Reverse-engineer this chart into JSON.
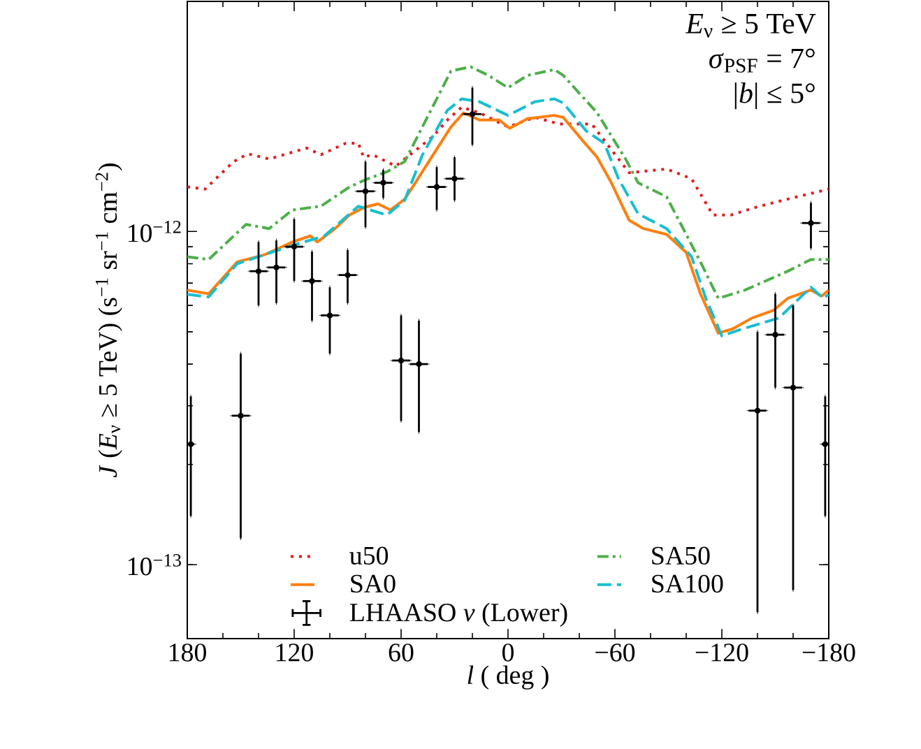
{
  "chart_data": {
    "type": "line",
    "xlabel": "*l* ( deg )",
    "ylabel": "*J* (*E*$_{ν}$ ≥ 5 TeV) (s$^{−1}$ sr$^{−1}$ cm$^{−2}$)",
    "annotations": [
      "*E*$_{ν}$ ≥ 5 TeV",
      "*σ*$_{PSF}$ = 7°",
      "|*b*| ≤ 5°"
    ],
    "log": "y",
    "legend": "bottom",
    "grid": false,
    "xlim": [
      180,
      -180
    ],
    "xticks": [
      180,
      120,
      60,
      0,
      {
        "value": -60,
        "label": "−60"
      },
      {
        "value": -120,
        "label": "−120"
      },
      {
        "value": -180,
        "label": "−180"
      }
    ],
    "ylim": [
      6e-14,
      4.9e-12
    ],
    "yticks": [
      {
        "value": 1e-13,
        "label": "10$^{−13}$"
      },
      {
        "value": 1e-12,
        "label": "10$^{−12}$"
      }
    ],
    "series": [
      {
        "name": "u50",
        "color": "#e41a1c",
        "line_style": "dotted",
        "x": [
          180,
          170,
          154,
          146,
          134,
          113,
          105,
          91,
          84,
          81,
          76,
          63,
          52,
          42,
          34,
          26,
          16,
          0,
          -15,
          -29,
          -47,
          -68,
          -89,
          -103,
          -115,
          -125,
          -141,
          -162,
          -180
        ],
        "values": [
          1.36e-12,
          1.34e-12,
          1.62e-12,
          1.71e-12,
          1.65e-12,
          1.78e-12,
          1.7e-12,
          1.84e-12,
          1.84e-12,
          1.67e-12,
          1.7e-12,
          1.57e-12,
          1.75e-12,
          1.93e-12,
          2.16e-12,
          2.36e-12,
          2.27e-12,
          2.06e-12,
          2.2e-12,
          2.1e-12,
          2.1e-12,
          1.5e-12,
          1.54e-12,
          1.44e-12,
          1.12e-12,
          1.12e-12,
          1.19e-12,
          1.27e-12,
          1.34e-12
        ]
      },
      {
        "name": "SA50",
        "color": "#4daf4a",
        "line_style": "dashdot",
        "x": [
          180,
          168,
          147,
          134,
          121,
          105,
          89,
          80,
          68,
          58,
          44,
          32,
          21,
          11,
          0,
          -11,
          -26,
          -31,
          -50,
          -66,
          -73,
          -89,
          -100,
          -108,
          -118,
          -133,
          -157,
          -170,
          -180
        ],
        "values": [
          8.4e-13,
          8.24e-13,
          1.05e-12,
          1.02e-12,
          1.16e-12,
          1.19e-12,
          1.36e-12,
          1.43e-12,
          1.51e-12,
          1.62e-12,
          2.27e-12,
          3.03e-12,
          3.12e-12,
          2.94e-12,
          2.7e-12,
          2.94e-12,
          3.06e-12,
          2.94e-12,
          2.27e-12,
          1.65e-12,
          1.4e-12,
          1.27e-12,
          9.8e-13,
          8.1e-13,
          6.3e-13,
          6.67e-13,
          7.6e-13,
          8.24e-13,
          8.24e-13
        ]
      },
      {
        "name": "SA0",
        "color": "#ff7f0e",
        "line_style": "solid",
        "x": [
          180,
          168,
          152,
          137,
          121,
          111,
          107,
          97,
          89,
          81,
          73,
          66,
          58,
          52,
          42,
          32,
          25,
          16,
          5,
          -1,
          -11,
          -26,
          -31,
          -42,
          -50,
          -58,
          -68,
          -76,
          -89,
          -100,
          -108,
          -118,
          -126,
          -137,
          -149,
          -157,
          -170,
          -176,
          -180
        ],
        "values": [
          6.67e-13,
          6.5e-13,
          8.1e-13,
          8.5e-13,
          9.3e-13,
          9.7e-13,
          9.3e-13,
          1.02e-12,
          1.12e-12,
          1.18e-12,
          1.21e-12,
          1.16e-12,
          1.25e-12,
          1.4e-12,
          1.7e-12,
          2.06e-12,
          2.27e-12,
          2.16e-12,
          2.16e-12,
          2.04e-12,
          2.18e-12,
          2.23e-12,
          2.2e-12,
          1.87e-12,
          1.67e-12,
          1.4e-12,
          1.08e-12,
          1.02e-12,
          9.8e-13,
          8.65e-13,
          6.5e-13,
          4.95e-13,
          5.1e-13,
          5.5e-13,
          5.8e-13,
          6.3e-13,
          6.67e-13,
          6.4e-13,
          6.67e-13
        ]
      },
      {
        "name": "SA100",
        "color": "#17becf",
        "line_style": "dashed",
        "x": [
          180,
          168,
          152,
          121,
          103,
          84,
          68,
          58,
          48,
          34,
          26,
          16,
          0,
          -15,
          -26,
          -31,
          -44,
          -54,
          -62,
          -73,
          -89,
          -103,
          -111,
          -120,
          -131,
          -152,
          -170,
          -177,
          -180
        ],
        "values": [
          6.48e-13,
          6.36e-13,
          8e-13,
          9.08e-13,
          9.7e-13,
          1.19e-12,
          1.12e-12,
          1.24e-12,
          1.7e-12,
          2.31e-12,
          2.5e-12,
          2.45e-12,
          2.23e-12,
          2.45e-12,
          2.5e-12,
          2.43e-12,
          2e-12,
          1.84e-12,
          1.44e-12,
          1.13e-12,
          1.02e-12,
          8.4e-13,
          6.3e-13,
          4.86e-13,
          5.09e-13,
          5.5e-13,
          6.8e-13,
          6.3e-13,
          6.48e-13
        ]
      },
      {
        "name": "LHAASO *ν* (Lower)",
        "type": "scatter",
        "color": "#000000",
        "x": [
          178,
          171,
          150,
          140,
          130,
          120,
          110,
          100,
          90,
          80,
          70,
          60,
          50,
          40,
          30,
          20,
          -140,
          -150,
          -160,
          -170,
          -178
        ],
        "values": [
          2.3e-13,
          null,
          2.8e-13,
          7.6e-13,
          7.8e-13,
          9e-13,
          7.1e-13,
          5.6e-13,
          7.4e-13,
          1.32e-12,
          1.4e-12,
          4.1e-13,
          4e-13,
          1.36e-12,
          1.44e-12,
          2.25e-12,
          2.9e-13,
          4.9e-13,
          3.4e-13,
          1.06e-12,
          2.3e-13
        ],
        "errors": [
          [
            1.4e-13,
            3.2e-13
          ],
          null,
          [
            1.2e-13,
            4.3e-13
          ],
          [
            6e-13,
            9.3e-13
          ],
          [
            6.1e-13,
            9.4e-13
          ],
          [
            7.1e-13,
            1.09e-12
          ],
          [
            5.4e-13,
            8.7e-13
          ],
          [
            4.3e-13,
            6.8e-13
          ],
          [
            6.1e-13,
            8.8e-13
          ],
          [
            1.03e-12,
            1.62e-12
          ],
          [
            1.26e-12,
            1.53e-12
          ],
          [
            2.7e-13,
            5.6e-13
          ],
          [
            2.5e-13,
            5.4e-13
          ],
          [
            1.16e-12,
            1.56e-12
          ],
          [
            1.24e-12,
            1.67e-12
          ],
          [
            1.82e-12,
            2.7e-12
          ],
          [
            7.2e-14,
            5e-13
          ],
          [
            3.4e-13,
            6.5e-13
          ],
          [
            8.4e-14,
            6e-13
          ],
          [
            8.9e-13,
            1.22e-12
          ],
          [
            1.4e-13,
            3.2e-13
          ]
        ],
        "xerrors": [
          2,
          null,
          5,
          5,
          5,
          5,
          5,
          5,
          5,
          5,
          5,
          5,
          5,
          5,
          5,
          5,
          5,
          5,
          5,
          5,
          2
        ]
      }
    ]
  }
}
